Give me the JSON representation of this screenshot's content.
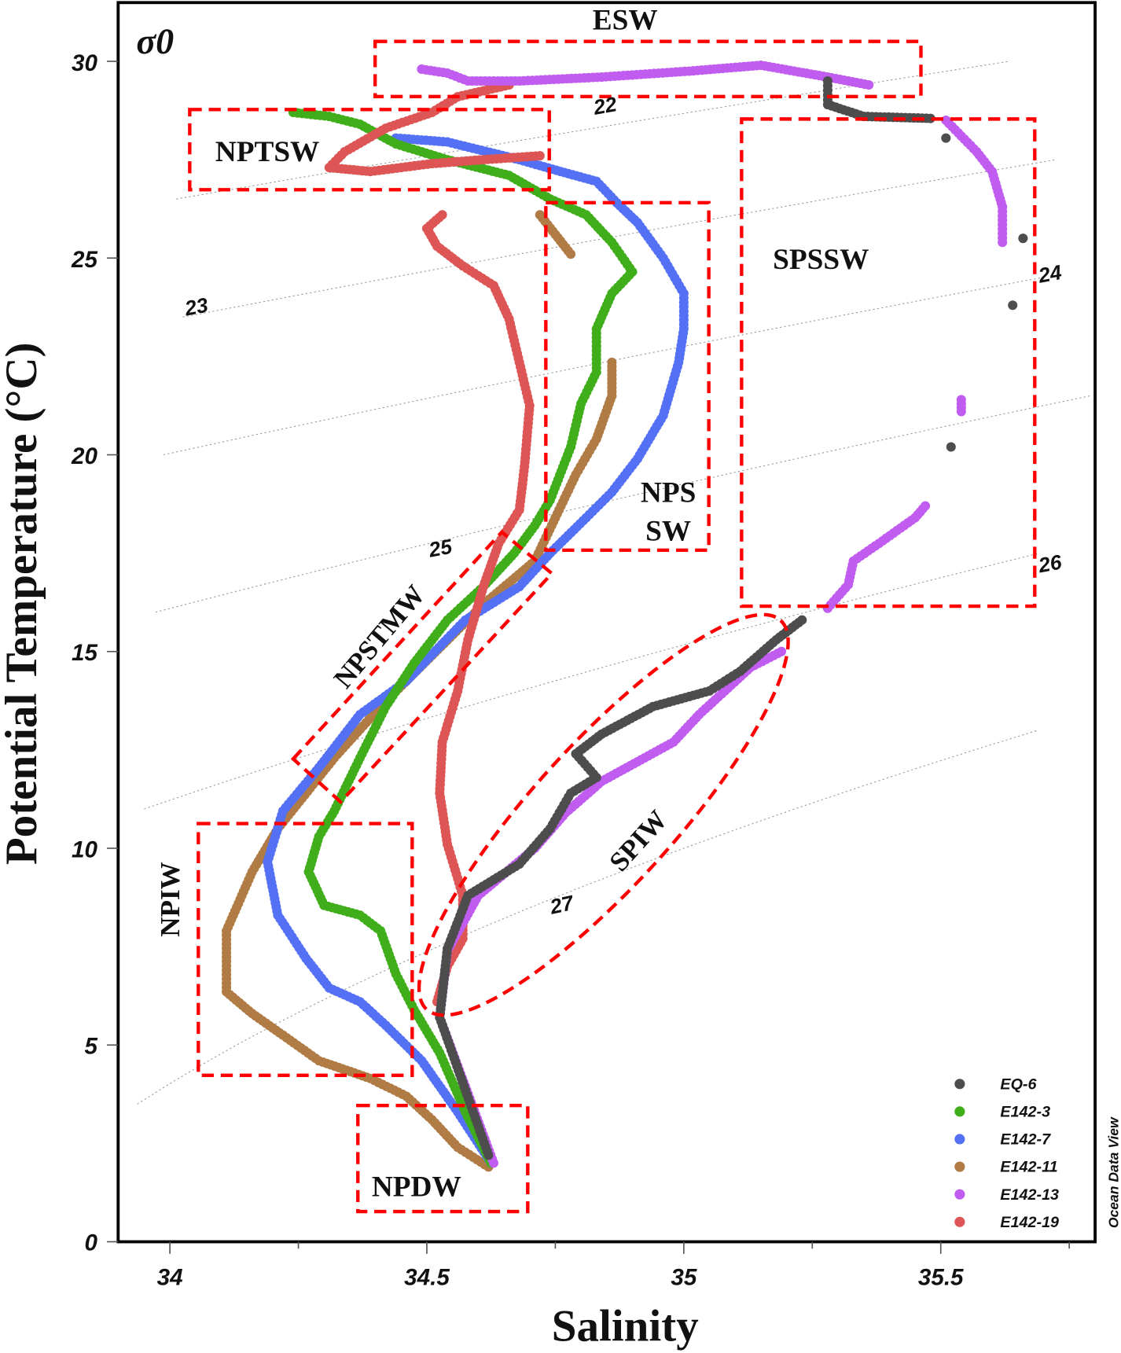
{
  "chart_data": {
    "type": "scatter",
    "xlabel": "Salinity",
    "ylabel": "Potential Temperature (°C)",
    "xlim": [
      33.9,
      35.8
    ],
    "ylim": [
      0,
      31.5
    ],
    "xticks": [
      "34",
      "34.5",
      "35",
      "35.5"
    ],
    "yticks": [
      "0",
      "5",
      "10",
      "15",
      "20",
      "25",
      "30"
    ],
    "contour_label": "σ0",
    "isopycnals": [
      {
        "label": "22",
        "value": 22
      },
      {
        "label": "23",
        "value": 23
      },
      {
        "label": "24",
        "value": 24
      },
      {
        "label": "25",
        "value": 25
      },
      {
        "label": "26",
        "value": 26
      },
      {
        "label": "27",
        "value": 27
      }
    ],
    "legend_position": "bottom-right",
    "watermark": "Ocean Data View",
    "water_masses": [
      {
        "label": "ESW",
        "shape": "rectangle"
      },
      {
        "label": "NPTSW",
        "shape": "rectangle"
      },
      {
        "label": "NPS",
        "label2": "SW",
        "shape": "rectangle"
      },
      {
        "label": "SPSSW",
        "shape": "rectangle"
      },
      {
        "label": "NPSTMW",
        "shape": "rotated-rectangle"
      },
      {
        "label": "NPIW",
        "shape": "rectangle"
      },
      {
        "label": "NPDW",
        "shape": "rectangle"
      },
      {
        "label": "SPIW",
        "shape": "ellipse"
      }
    ],
    "series": [
      {
        "name": "EQ-6",
        "color": "#4d4d4d",
        "segments": [
          [
            [
              34.62,
              2.2
            ],
            [
              34.525,
              5.7
            ],
            [
              34.54,
              7.45
            ],
            [
              34.58,
              8.8
            ],
            [
              34.68,
              9.6
            ],
            [
              34.74,
              10.5
            ],
            [
              34.78,
              11.4
            ],
            [
              34.83,
              11.8
            ],
            [
              34.79,
              12.4
            ],
            [
              34.84,
              12.9
            ],
            [
              34.94,
              13.6
            ],
            [
              35.05,
              14.0
            ],
            [
              35.11,
              14.5
            ],
            [
              35.18,
              15.3
            ],
            [
              35.23,
              15.8
            ]
          ],
          [
            [
              35.28,
              29.5
            ],
            [
              35.28,
              28.9
            ],
            [
              35.35,
              28.6
            ],
            [
              35.48,
              28.55
            ]
          ],
          [
            [
              35.51,
              28.05
            ]
          ],
          [
            [
              35.66,
              25.5
            ]
          ],
          [
            [
              35.64,
              23.8
            ]
          ],
          [
            [
              35.52,
              20.2
            ]
          ]
        ]
      },
      {
        "name": "E142-3",
        "color": "#3fae1a",
        "segments": [
          [
            [
              34.24,
              28.7
            ],
            [
              34.31,
              28.6
            ],
            [
              34.37,
              28.4
            ],
            [
              34.44,
              27.9
            ],
            [
              34.54,
              27.5
            ],
            [
              34.66,
              27.1
            ],
            [
              34.74,
              26.5
            ],
            [
              34.81,
              26.1
            ],
            [
              34.86,
              25.4
            ],
            [
              34.9,
              24.65
            ],
            [
              34.86,
              24.1
            ],
            [
              34.83,
              23.2
            ],
            [
              34.83,
              22.1
            ],
            [
              34.8,
              21.3
            ],
            [
              34.78,
              20.2
            ],
            [
              34.74,
              18.85
            ],
            [
              34.71,
              18.2
            ],
            [
              34.67,
              17.5
            ],
            [
              34.61,
              16.65
            ],
            [
              34.54,
              15.8
            ],
            [
              34.475,
              14.7
            ],
            [
              34.42,
              13.6
            ],
            [
              34.37,
              12.3
            ],
            [
              34.32,
              10.95
            ],
            [
              34.29,
              10.3
            ],
            [
              34.27,
              9.4
            ],
            [
              34.3,
              8.55
            ],
            [
              34.37,
              8.3
            ],
            [
              34.41,
              7.9
            ],
            [
              34.44,
              6.8
            ],
            [
              34.475,
              5.9
            ],
            [
              34.525,
              4.8
            ],
            [
              34.575,
              3.3
            ],
            [
              34.625,
              2.0
            ]
          ]
        ]
      },
      {
        "name": "E142-7",
        "color": "#5470f5",
        "segments": [
          [
            [
              34.44,
              28.05
            ],
            [
              34.54,
              27.95
            ],
            [
              34.68,
              27.5
            ],
            [
              34.76,
              27.2
            ],
            [
              34.83,
              26.95
            ],
            [
              34.87,
              26.4
            ],
            [
              34.91,
              25.9
            ],
            [
              34.96,
              25.0
            ],
            [
              35.0,
              24.1
            ],
            [
              35.0,
              23.2
            ],
            [
              34.99,
              22.35
            ],
            [
              34.96,
              21.0
            ],
            [
              34.91,
              19.9
            ],
            [
              34.86,
              19.05
            ],
            [
              34.81,
              18.4
            ],
            [
              34.74,
              17.5
            ],
            [
              34.68,
              16.65
            ],
            [
              34.575,
              15.8
            ],
            [
              34.46,
              14.25
            ],
            [
              34.37,
              13.4
            ],
            [
              34.29,
              12.05
            ],
            [
              34.22,
              10.95
            ],
            [
              34.19,
              9.65
            ],
            [
              34.21,
              8.3
            ],
            [
              34.265,
              7.2
            ],
            [
              34.31,
              6.45
            ],
            [
              34.37,
              6.1
            ],
            [
              34.42,
              5.5
            ],
            [
              34.49,
              4.6
            ],
            [
              34.56,
              3.3
            ],
            [
              34.625,
              2.0
            ]
          ]
        ]
      },
      {
        "name": "E142-11",
        "color": "#b07b45",
        "segments": [
          [
            [
              34.72,
              26.1
            ],
            [
              34.78,
              25.1
            ]
          ],
          [
            [
              34.86,
              22.35
            ],
            [
              34.86,
              21.5
            ],
            [
              34.83,
              20.4
            ],
            [
              34.79,
              19.5
            ],
            [
              34.75,
              18.4
            ],
            [
              34.71,
              17.3
            ],
            [
              34.61,
              16.2
            ],
            [
              34.51,
              14.9
            ],
            [
              34.41,
              13.6
            ],
            [
              34.32,
              12.3
            ],
            [
              34.21,
              10.5
            ],
            [
              34.16,
              9.4
            ],
            [
              34.11,
              7.9
            ],
            [
              34.11,
              6.35
            ],
            [
              34.16,
              5.8
            ],
            [
              34.22,
              5.25
            ],
            [
              34.29,
              4.6
            ],
            [
              34.39,
              4.15
            ],
            [
              34.46,
              3.7
            ],
            [
              34.51,
              3.1
            ],
            [
              34.56,
              2.4
            ],
            [
              34.62,
              1.9
            ]
          ]
        ]
      },
      {
        "name": "E142-13",
        "color": "#c05cf0",
        "segments": [
          [
            [
              34.63,
              2.0
            ],
            [
              34.525,
              5.7
            ],
            [
              34.54,
              7.4
            ],
            [
              34.6,
              8.8
            ],
            [
              34.71,
              10.0
            ],
            [
              34.77,
              10.9
            ],
            [
              34.84,
              11.7
            ],
            [
              34.91,
              12.2
            ],
            [
              34.98,
              12.7
            ],
            [
              35.03,
              13.4
            ],
            [
              35.08,
              14.0
            ],
            [
              35.13,
              14.6
            ],
            [
              35.19,
              15.0
            ]
          ],
          [
            [
              35.28,
              16.1
            ],
            [
              35.32,
              16.7
            ],
            [
              35.33,
              17.3
            ],
            [
              35.38,
              17.75
            ],
            [
              35.45,
              18.4
            ],
            [
              35.47,
              18.7
            ]
          ],
          [
            [
              35.54,
              21.1
            ],
            [
              35.54,
              21.4
            ]
          ],
          [
            [
              35.62,
              25.4
            ],
            [
              35.62,
              26.3
            ],
            [
              35.6,
              27.2
            ],
            [
              35.57,
              27.7
            ],
            [
              35.51,
              28.5
            ]
          ],
          [
            [
              35.36,
              29.4
            ],
            [
              35.28,
              29.6
            ],
            [
              35.15,
              29.9
            ],
            [
              35.01,
              29.75
            ],
            [
              34.84,
              29.6
            ],
            [
              34.68,
              29.5
            ],
            [
              34.58,
              29.5
            ],
            [
              34.54,
              29.7
            ],
            [
              34.49,
              29.8
            ]
          ]
        ]
      },
      {
        "name": "E142-19",
        "color": "#dd5555",
        "segments": [
          [
            [
              34.66,
              29.4
            ],
            [
              34.56,
              29.1
            ],
            [
              34.51,
              28.7
            ],
            [
              34.42,
              28.3
            ],
            [
              34.34,
              27.7
            ],
            [
              34.31,
              27.3
            ],
            [
              34.39,
              27.2
            ],
            [
              34.51,
              27.4
            ],
            [
              34.61,
              27.5
            ],
            [
              34.72,
              27.6
            ]
          ],
          [
            [
              34.53,
              26.1
            ],
            [
              34.5,
              25.75
            ],
            [
              34.52,
              25.3
            ],
            [
              34.57,
              24.8
            ],
            [
              34.63,
              24.3
            ],
            [
              34.66,
              23.45
            ],
            [
              34.68,
              22.35
            ],
            [
              34.7,
              21.25
            ],
            [
              34.69,
              19.7
            ],
            [
              34.68,
              18.6
            ],
            [
              34.64,
              17.75
            ],
            [
              34.61,
              16.65
            ],
            [
              34.58,
              15.3
            ],
            [
              34.56,
              14.0
            ],
            [
              34.53,
              12.7
            ],
            [
              34.525,
              11.4
            ],
            [
              34.54,
              10.1
            ],
            [
              34.57,
              8.8
            ],
            [
              34.57,
              7.7
            ],
            [
              34.54,
              7.0
            ],
            [
              34.52,
              6.1
            ]
          ]
        ]
      }
    ]
  }
}
